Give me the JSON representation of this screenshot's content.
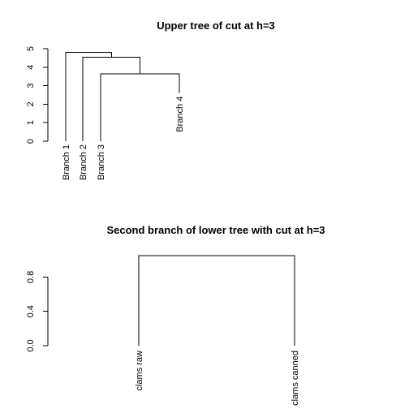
{
  "chart_data": [
    {
      "type": "dendrogram",
      "title": "Upper tree of cut at h=3",
      "xlabel": "",
      "ylabel": "",
      "ylim": [
        0,
        5
      ],
      "yticks": [
        "0",
        "1",
        "2",
        "3",
        "4",
        "5"
      ],
      "leaves": [
        "Branch 1",
        "Branch 2",
        "Branch 3",
        "Branch 4"
      ],
      "leaf_heights": [
        0,
        0,
        0,
        2.6
      ],
      "merges": [
        {
          "left": "Branch 3",
          "right": "Branch 4",
          "height": 3.65
        },
        {
          "left": "Branch 2",
          "right": "Branch 3 + Branch 4",
          "height": 4.55
        },
        {
          "left": "Branch 1",
          "right": "Branch 2 + Branch 3 + Branch 4",
          "height": 4.8
        }
      ]
    },
    {
      "type": "dendrogram",
      "title": "Second branch of lower tree with cut at h=3",
      "xlabel": "",
      "ylabel": "",
      "ylim": [
        0,
        1.05
      ],
      "yticks": [
        "0.0",
        "0.4",
        "0.8"
      ],
      "leaves": [
        "clams raw",
        "clams canned"
      ],
      "leaf_heights": [
        0,
        0
      ],
      "merges": [
        {
          "left": "clams raw",
          "right": "clams canned",
          "height": 1.05
        }
      ]
    }
  ]
}
